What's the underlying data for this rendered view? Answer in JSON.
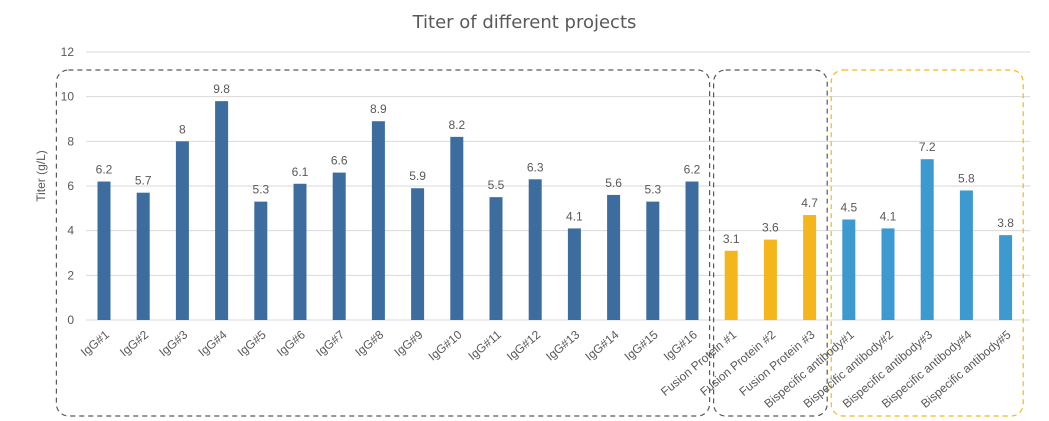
{
  "chart_data": {
    "type": "bar",
    "title": "Titer of different projects",
    "xlabel": "",
    "ylabel": "Titer (g/L)",
    "ylim": [
      0,
      12
    ],
    "yticks": [
      0,
      2,
      4,
      6,
      8,
      10,
      12
    ],
    "grid": true,
    "categories": [
      "IgG#1",
      "IgG#2",
      "IgG#3",
      "IgG#4",
      "IgG#5",
      "IgG#6",
      "IgG#7",
      "IgG#8",
      "IgG#9",
      "IgG#10",
      "IgG#11",
      "IgG#12",
      "IgG#13",
      "IgG#14",
      "IgG#15",
      "IgG#16",
      "Fusion Protein #1",
      "Fusion Protein #2",
      "Fusion Protein #3",
      "Bispecific antibody#1",
      "Bispecific antibody#2",
      "Bispecific antibody#3",
      "Bispecific antibody#4",
      "Bispecific antibody#5"
    ],
    "values": [
      6.2,
      5.7,
      8,
      9.8,
      5.3,
      6.1,
      6.6,
      8.9,
      5.9,
      8.2,
      5.5,
      6.3,
      4.1,
      5.6,
      5.3,
      6.2,
      3.1,
      3.6,
      4.7,
      4.5,
      4.1,
      7.2,
      5.8,
      3.8
    ],
    "data_labels": [
      "6.2",
      "5.7",
      "8",
      "9.8",
      "5.3",
      "6.1",
      "6.6",
      "8.9",
      "5.9",
      "8.2",
      "5.5",
      "6.3",
      "4.1",
      "5.6",
      "5.3",
      "6.2",
      "3.1",
      "3.6",
      "4.7",
      "4.5",
      "4.1",
      "7.2",
      "5.8",
      "3.8"
    ],
    "groups": [
      {
        "range": [
          0,
          15
        ],
        "bar_color": "#3C6D9E",
        "box_color": "#595959"
      },
      {
        "range": [
          16,
          18
        ],
        "bar_color": "#F5B61B",
        "box_color": "#595959"
      },
      {
        "range": [
          19,
          23
        ],
        "bar_color": "#3C9AD0",
        "box_color": "#F5B61B"
      }
    ],
    "colors": {
      "grid": "#D9D9D9",
      "text": "#595959"
    }
  }
}
